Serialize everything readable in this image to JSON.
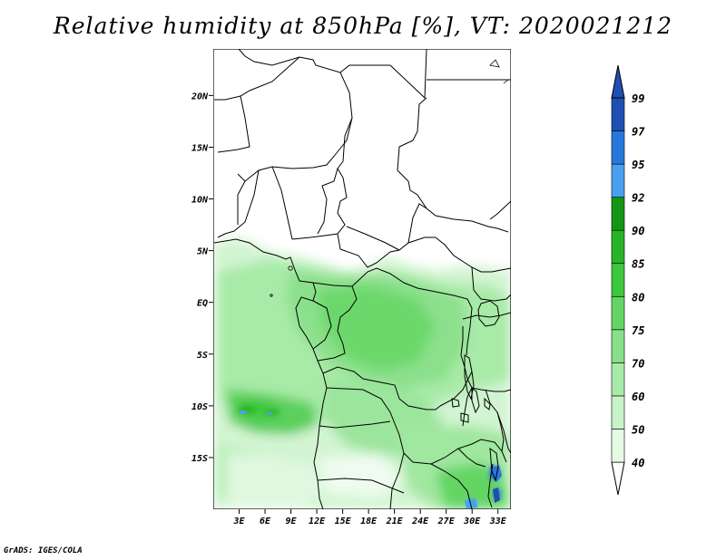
{
  "title": "Relative humidity at 850hPa [%], VT: 2020021212",
  "credit": "GrADS: IGES/COLA",
  "map": {
    "lon_range": [
      0,
      34.5
    ],
    "lat_range": [
      -20,
      24.5
    ],
    "lat_ticks": [
      "20N",
      "15N",
      "10N",
      "5N",
      "EQ",
      "5S",
      "10S",
      "15S"
    ],
    "lon_ticks": [
      "3E",
      "6E",
      "9E",
      "12E",
      "15E",
      "18E",
      "21E",
      "24E",
      "27E",
      "30E",
      "33E"
    ]
  },
  "colorbar": {
    "levels": [
      "40",
      "50",
      "60",
      "70",
      "75",
      "80",
      "85",
      "90",
      "92",
      "95",
      "97",
      "99"
    ],
    "colors": [
      "#ffffff",
      "#e6fae6",
      "#c8f2c8",
      "#a8eaa8",
      "#88e088",
      "#64d564",
      "#3cc83c",
      "#28b428",
      "#149614",
      "#4aa0ee",
      "#2878dc",
      "#1e50b4"
    ]
  },
  "colors": {
    "land_outline": "#000000",
    "background": "#ffffff"
  }
}
